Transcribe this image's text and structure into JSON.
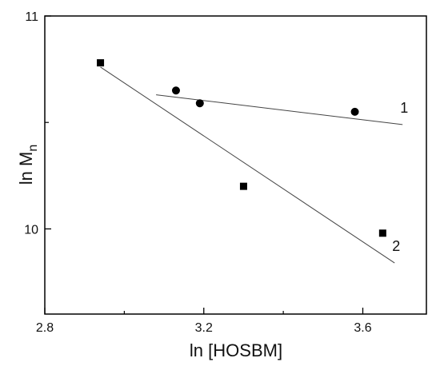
{
  "chart_data": {
    "type": "scatter",
    "xlabel": "ln [HOSBM]",
    "ylabel_main": "ln M",
    "ylabel_sub": "n",
    "xlim": [
      2.8,
      3.76
    ],
    "ylim": [
      9.6,
      11.0
    ],
    "xticks": [
      2.8,
      3.2,
      3.6
    ],
    "xtick_labels": [
      "2.8",
      "3.2",
      "3.6"
    ],
    "yticks": [
      10,
      11
    ],
    "ytick_labels": [
      "10",
      "11"
    ],
    "grid": false,
    "legend": "none",
    "series": [
      {
        "name": "1",
        "marker": "circle",
        "x": [
          3.13,
          3.19,
          3.58
        ],
        "y": [
          10.65,
          10.59,
          10.55
        ],
        "fit": {
          "x": [
            3.08,
            3.7
          ],
          "y": [
            10.63,
            10.49
          ]
        }
      },
      {
        "name": "2",
        "marker": "square",
        "x": [
          2.94,
          3.3,
          3.65
        ],
        "y": [
          10.78,
          10.2,
          9.98
        ],
        "fit": {
          "x": [
            2.94,
            3.68
          ],
          "y": [
            10.76,
            9.84
          ]
        }
      }
    ],
    "colors": {
      "marker": "#000000",
      "line": "#444444",
      "axis": "#000000"
    }
  }
}
